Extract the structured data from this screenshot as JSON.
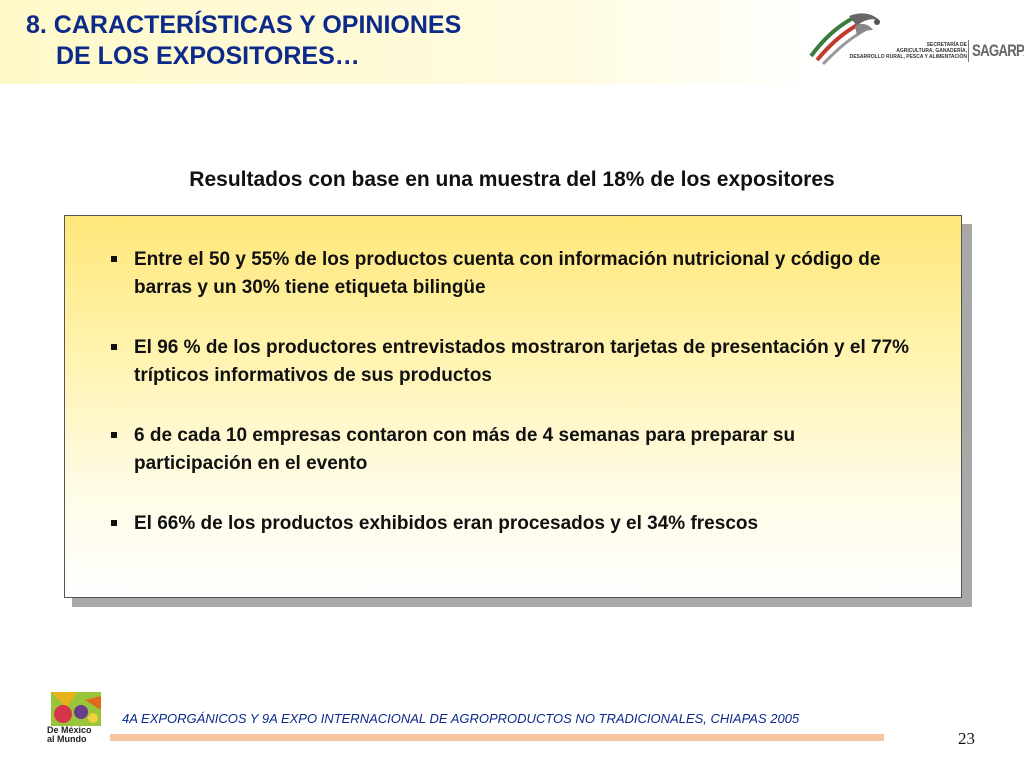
{
  "header": {
    "title_line1": "8. CARACTERÍSTICAS Y OPINIONES",
    "title_line2": "DE LOS EXPOSITORES…"
  },
  "logo": {
    "icon": "mexican-eagle-emblem",
    "text_line1": "SECRETARÍA DE",
    "text_line2": "AGRICULTURA, GANADERÍA,",
    "text_line3": "DESARROLLO RURAL, PESCA Y ALIMENTACIÓN",
    "brand": "SAGARPA"
  },
  "subtitle": "Resultados con base en una muestra del 18% de los expositores",
  "bullets": [
    "Entre el  50 y 55% de los productos cuenta con información nutricional y código de barras y un 30% tiene etiqueta bilingüe",
    "El 96 % de los productores entrevistados mostraron tarjetas de presentación y el 77%  trípticos informativos de sus productos",
    "6 de cada 10 empresas contaron con más de 4 semanas para preparar su participación en el evento",
    "El 66% de los productos exhibidos eran procesados y el 34% frescos"
  ],
  "footer": {
    "logo_icon": "de-mexico-al-mundo-logo",
    "logo_line1": "De México",
    "logo_line2": "al Mundo",
    "text": "4A EXPORGÁNICOS Y 9A EXPO INTERNACIONAL DE AGROPRODUCTOS NO TRADICIONALES, CHIAPAS 2005",
    "page_number": "23"
  },
  "colors": {
    "title": "#0b2a8a",
    "box_fill_top": "#ffe77a",
    "footer_bar": "#f7c59f"
  }
}
